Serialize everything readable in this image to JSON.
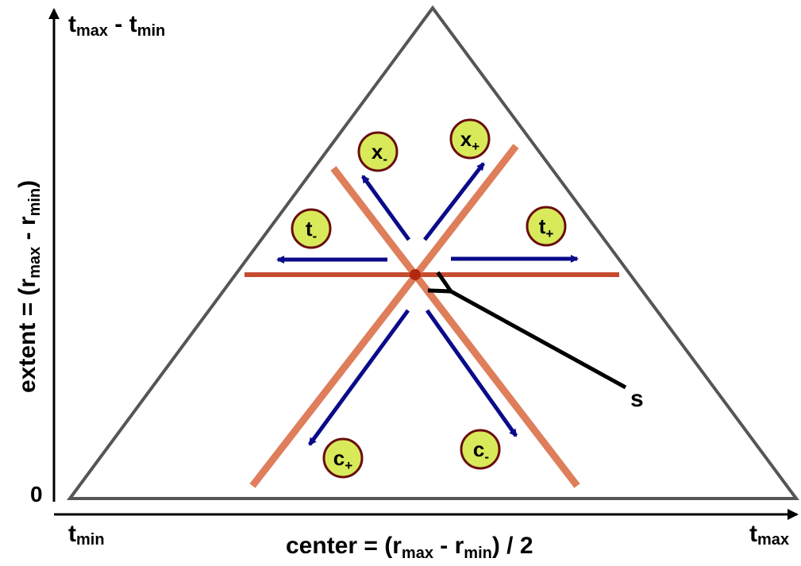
{
  "axes": {
    "y_top": {
      "main": "t",
      "sub": "max",
      "mid": " - t",
      "sub2": "min"
    },
    "y_zero": "0",
    "y_label": {
      "p1": "extent = (r",
      "s1": "max",
      "p2": " - r",
      "s2": "min",
      "p3": ")"
    },
    "x_left": {
      "main": "t",
      "sub": "min"
    },
    "x_right": {
      "main": "t",
      "sub": "max"
    },
    "x_label": {
      "p1": "center = (r",
      "s1": "max",
      "p2": " - r",
      "s2": "min",
      "p3": ") / 2"
    }
  },
  "nodes": {
    "x_minus": {
      "main": "x",
      "sub": "-"
    },
    "x_plus": {
      "main": "x",
      "sub": "+"
    },
    "t_minus": {
      "main": "t",
      "sub": "-"
    },
    "t_plus": {
      "main": "t",
      "sub": "+"
    },
    "c_plus": {
      "main": "c",
      "sub": "+"
    },
    "c_minus": {
      "main": "c",
      "sub": "-"
    }
  },
  "pointer_label": "s",
  "colors": {
    "triangle": "#555555",
    "band": "#c0391b",
    "arrow": "#0a0a8a",
    "node_fill": "#d8ea5a",
    "node_stroke": "#6a0d0d"
  }
}
